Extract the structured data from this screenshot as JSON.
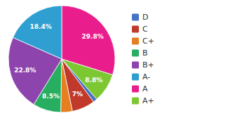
{
  "chart_data": {
    "type": "pie",
    "categories": [
      "A",
      "A+",
      "D",
      "C",
      "C+",
      "B",
      "B+",
      "A-"
    ],
    "values": [
      29.8,
      8.8,
      1.2,
      7.0,
      3.5,
      8.5,
      22.8,
      18.4
    ],
    "value_labels": [
      "29.8%",
      "8.8%",
      null,
      "7%",
      null,
      "8.5%",
      "22.8%",
      "18.4%"
    ],
    "colors": [
      "#E91E8C",
      "#7DC832",
      "#4472C4",
      "#C0392B",
      "#E67E22",
      "#27AE60",
      "#8E44AD",
      "#2E9FD0"
    ],
    "data_labels": true,
    "legend": "right",
    "legend_labels": [
      "D",
      "C",
      "C+",
      "B",
      "B+",
      "A-",
      "A",
      "A+"
    ]
  }
}
